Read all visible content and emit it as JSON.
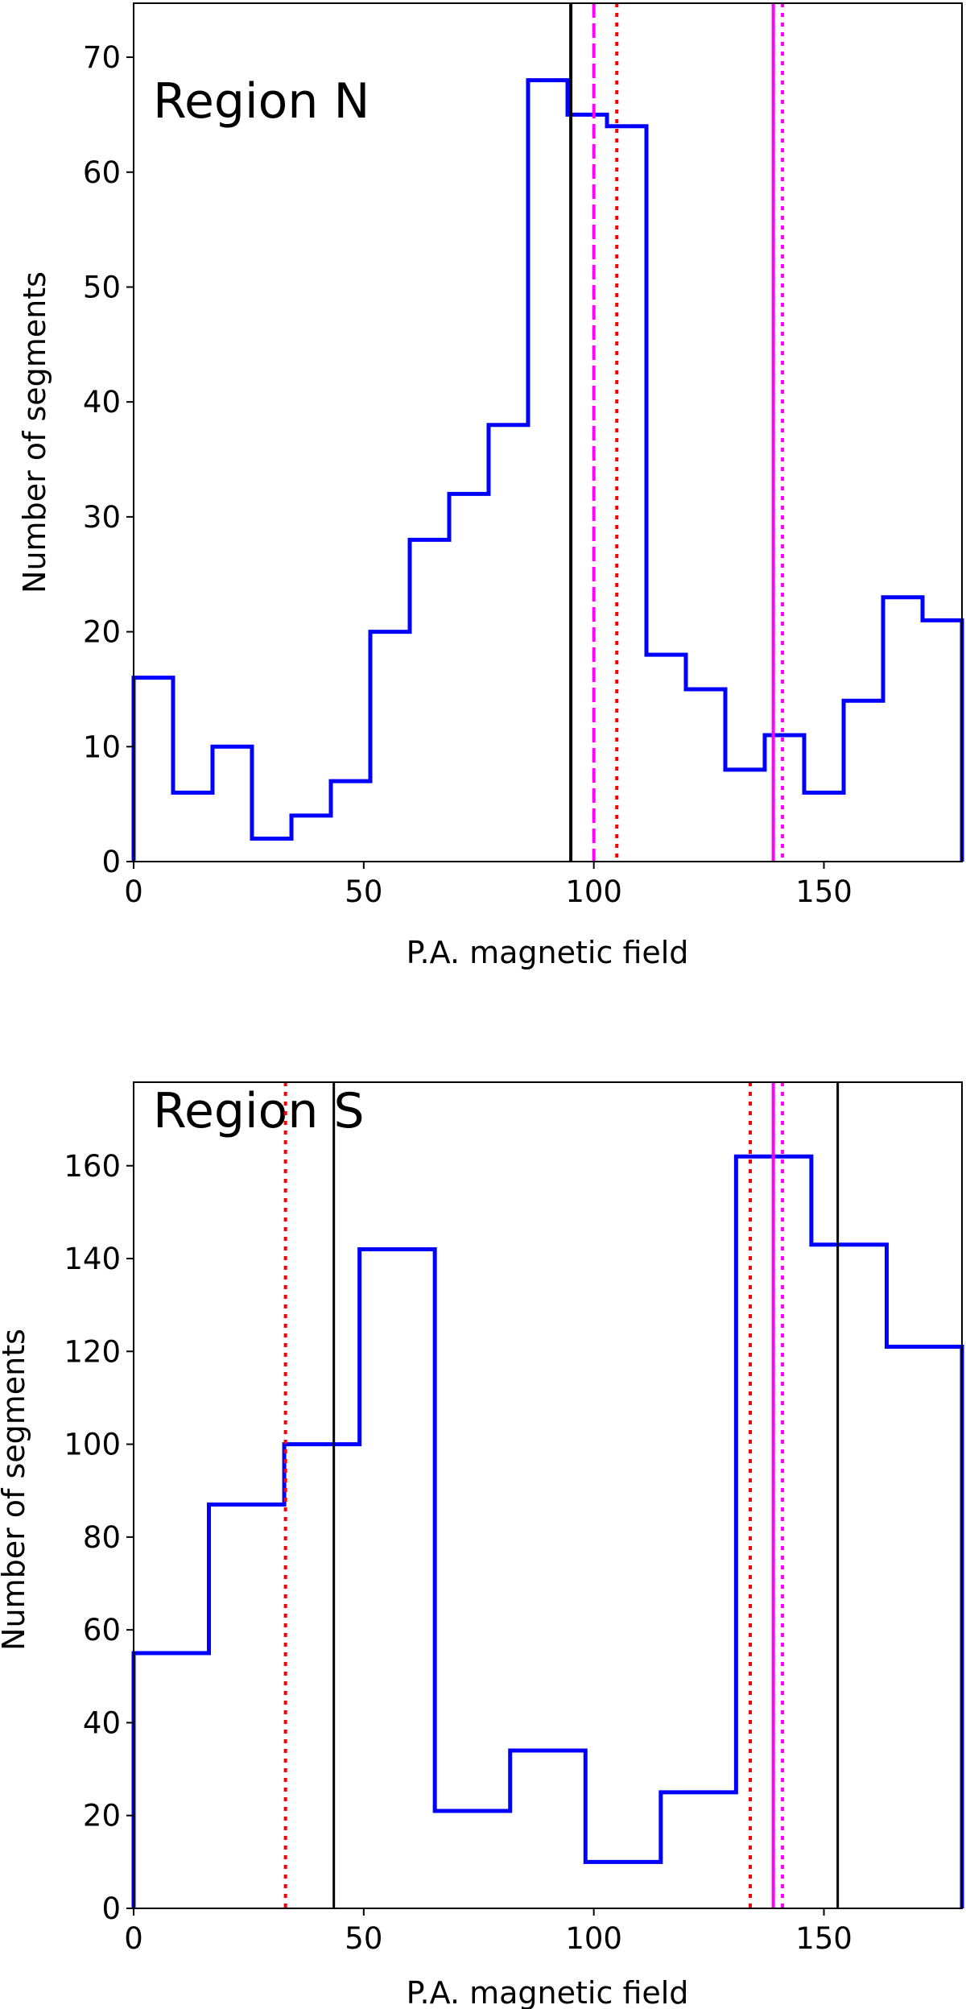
{
  "chart_data": [
    {
      "type": "histogram-step",
      "annotation": "Region N",
      "xlabel": "P.A. magnetic field",
      "ylabel": "Number of segments",
      "xlim": [
        0,
        180
      ],
      "ylim": [
        0,
        74.7
      ],
      "xticks": [
        0,
        50,
        100,
        150
      ],
      "yticks": [
        0,
        10,
        20,
        30,
        40,
        50,
        60,
        70
      ],
      "bin_edges": [
        0,
        8.57,
        17.14,
        25.71,
        34.29,
        42.86,
        51.43,
        60,
        68.57,
        77.14,
        85.71,
        94.29,
        102.86,
        111.43,
        120,
        128.57,
        137.14,
        145.71,
        154.29,
        162.86,
        171.43,
        180
      ],
      "values": [
        16,
        6,
        10,
        2,
        4,
        7,
        20,
        28,
        32,
        38,
        68,
        65,
        64,
        18,
        15,
        8,
        11,
        6,
        14,
        23,
        21
      ],
      "color": "#0000ff",
      "vlines": [
        {
          "x": 95,
          "color": "#000000",
          "style": "solid"
        },
        {
          "x": 100,
          "color": "#ff00ff",
          "style": "dashed"
        },
        {
          "x": 105,
          "color": "#ff0000",
          "style": "dotted"
        },
        {
          "x": 139,
          "color": "#ff00ff",
          "style": "solid"
        },
        {
          "x": 141,
          "color": "#ff00ff",
          "style": "dotted"
        }
      ],
      "grid": false
    },
    {
      "type": "histogram-step",
      "annotation": "Region S",
      "xlabel": "P.A. magnetic field",
      "ylabel": "Number of segments",
      "xlim": [
        0,
        180
      ],
      "ylim": [
        0,
        178
      ],
      "xticks": [
        0,
        50,
        100,
        150
      ],
      "yticks": [
        0,
        20,
        40,
        60,
        80,
        100,
        120,
        140,
        160
      ],
      "bin_edges": [
        0,
        16.36,
        32.73,
        49.09,
        65.45,
        81.82,
        98.18,
        114.55,
        130.91,
        147.27,
        163.64,
        180
      ],
      "values": [
        55,
        87,
        100,
        142,
        21,
        34,
        10,
        25,
        162,
        143,
        121
      ],
      "color": "#0000ff",
      "vlines": [
        {
          "x": 33,
          "color": "#ff0000",
          "style": "dotted"
        },
        {
          "x": 43.5,
          "color": "#000000",
          "style": "solid-thin"
        },
        {
          "x": 134,
          "color": "#ff0000",
          "style": "dotted"
        },
        {
          "x": 139,
          "color": "#ff00ff",
          "style": "solid"
        },
        {
          "x": 141,
          "color": "#ff00ff",
          "style": "dotted"
        },
        {
          "x": 153,
          "color": "#000000",
          "style": "solid-thin"
        }
      ],
      "grid": false
    }
  ]
}
